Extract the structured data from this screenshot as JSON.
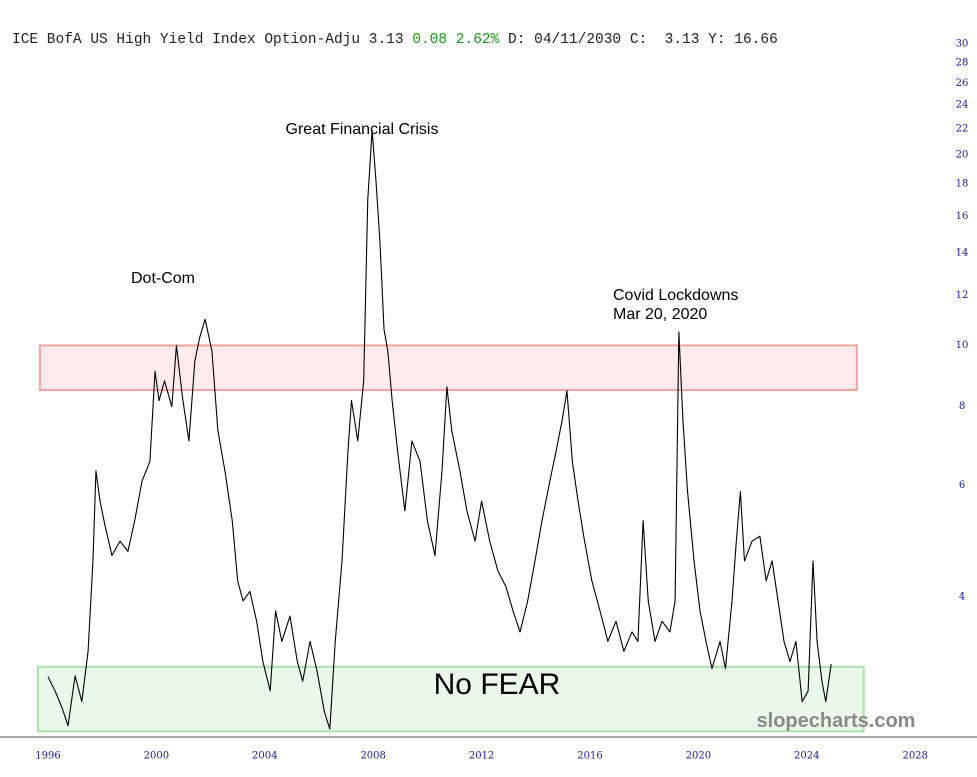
{
  "chart_data": {
    "type": "line",
    "header": {
      "name": "ICE BofA US High Yield Index Option-Adju",
      "last": "3.13",
      "change": "0.08",
      "change_pct": "2.62%",
      "date": "D: 04/11/2030",
      "close": "C:  3.13",
      "y": "Y: 16.66"
    },
    "annotations": [
      "Great Financial Crisis",
      "Dot-Com",
      "Covid Lockdowns",
      "Mar 20, 2020",
      "No FEAR"
    ],
    "watermark": "slopecharts.com",
    "line_color": "#000000",
    "log_y": true,
    "x": [
      1996.0,
      1996.26,
      1996.52,
      1996.74,
      1997.0,
      1997.25,
      1997.48,
      1997.66,
      1997.77,
      1997.92,
      1998.1,
      1998.36,
      1998.66,
      1998.95,
      1999.2,
      1999.47,
      1999.76,
      1999.95,
      2000.1,
      2000.3,
      2000.57,
      2000.74,
      2000.96,
      2001.2,
      2001.42,
      2001.6,
      2001.8,
      2002.05,
      2002.27,
      2002.53,
      2002.8,
      2003.0,
      2003.2,
      2003.45,
      2003.7,
      2003.93,
      2004.2,
      2004.4,
      2004.63,
      2004.93,
      2005.2,
      2005.4,
      2005.67,
      2005.93,
      2006.2,
      2006.4,
      2006.6,
      2006.85,
      2007.07,
      2007.2,
      2007.43,
      2007.65,
      2007.8,
      2007.96,
      2008.1,
      2008.25,
      2008.4,
      2008.54,
      2008.7,
      2008.9,
      2009.17,
      2009.43,
      2009.73,
      2010.0,
      2010.28,
      2010.54,
      2010.72,
      2010.9,
      2011.2,
      2011.46,
      2011.76,
      2012.0,
      2012.3,
      2012.6,
      2012.9,
      2013.16,
      2013.42,
      2013.7,
      2013.97,
      2014.23,
      2014.52,
      2014.75,
      2014.97,
      2015.15,
      2015.35,
      2015.56,
      2015.8,
      2016.07,
      2016.37,
      2016.66,
      2016.96,
      2017.25,
      2017.55,
      2017.77,
      2017.96,
      2018.15,
      2018.4,
      2018.66,
      2018.95,
      2019.14,
      2019.28,
      2019.43,
      2019.6,
      2019.84,
      2020.06,
      2020.28,
      2020.5,
      2020.8,
      2021.0,
      2021.24,
      2021.4,
      2021.55,
      2021.7,
      2021.98,
      2022.27,
      2022.5,
      2022.72,
      2022.94,
      2023.16,
      2023.38,
      2023.6,
      2023.83,
      2024.05,
      2024.23,
      2024.38,
      2024.56,
      2024.7,
      2024.9
    ],
    "values": [
      2.99,
      2.84,
      2.67,
      2.5,
      3.0,
      2.73,
      3.28,
      4.56,
      6.33,
      5.67,
      5.2,
      4.65,
      4.9,
      4.72,
      5.28,
      6.1,
      6.55,
      9.1,
      8.18,
      8.79,
      8.0,
      10.0,
      8.3,
      7.06,
      9.45,
      10.3,
      11.0,
      9.8,
      7.33,
      6.33,
      5.28,
      4.24,
      3.94,
      4.08,
      3.66,
      3.16,
      2.84,
      3.8,
      3.4,
      3.73,
      3.16,
      2.94,
      3.4,
      3.05,
      2.63,
      2.47,
      3.4,
      4.56,
      6.81,
      8.18,
      7.06,
      8.79,
      17.0,
      21.9,
      18.3,
      14.6,
      10.6,
      9.8,
      8.18,
      6.81,
      5.47,
      7.06,
      6.55,
      5.28,
      4.65,
      6.33,
      8.6,
      7.33,
      6.33,
      5.47,
      4.9,
      5.67,
      4.9,
      4.4,
      4.15,
      3.8,
      3.52,
      3.94,
      4.56,
      5.28,
      6.1,
      6.81,
      7.6,
      8.48,
      6.55,
      5.67,
      4.9,
      4.24,
      3.8,
      3.4,
      3.66,
      3.28,
      3.52,
      3.4,
      5.28,
      3.94,
      3.4,
      3.66,
      3.52,
      3.94,
      10.5,
      7.6,
      5.87,
      4.56,
      3.8,
      3.4,
      3.08,
      3.4,
      3.08,
      3.94,
      4.9,
      5.87,
      4.56,
      4.9,
      4.99,
      4.24,
      4.56,
      3.94,
      3.4,
      3.16,
      3.4,
      2.73,
      2.84,
      4.56,
      3.4,
      2.94,
      2.73,
      3.13
    ],
    "bands": [
      {
        "x": [
          1995.7,
          2025.85
        ],
        "y": [
          8.5,
          10.0
        ],
        "color": "#fdeaea",
        "stroke": "#f2a3a3"
      },
      {
        "x": [
          1995.63,
          2026.1
        ],
        "y": [
          2.45,
          3.1
        ],
        "color": "#e9f8e9",
        "stroke": "#a9e2a9"
      }
    ],
    "xlim": [
      1994.23,
      2029.1
    ],
    "ylim": [
      2.4,
      31
    ],
    "xticks": [
      1996,
      2000,
      2004,
      2008,
      2012,
      2016,
      2020,
      2024,
      2028
    ],
    "yticks": [
      4,
      6,
      8,
      10,
      12,
      14,
      16,
      18,
      20,
      22,
      24,
      26,
      28,
      30
    ]
  }
}
